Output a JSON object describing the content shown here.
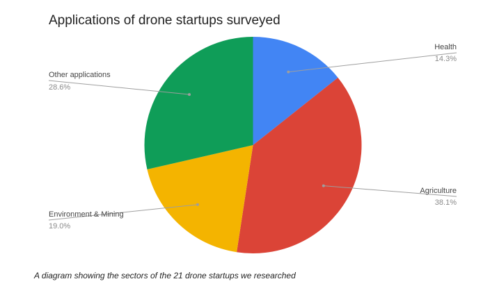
{
  "chart_data": {
    "type": "pie",
    "title": "Applications of drone startups surveyed",
    "slices": [
      {
        "label": "Health",
        "value": 14.3,
        "value_label": "14.3%",
        "color": "#4285F4"
      },
      {
        "label": "Agriculture",
        "value": 38.1,
        "value_label": "38.1%",
        "color": "#DB4437"
      },
      {
        "label": "Environment & Mining",
        "value": 19.0,
        "value_label": "19.0%",
        "color": "#F4B400"
      },
      {
        "label": "Other applications",
        "value": 28.6,
        "value_label": "28.6%",
        "color": "#0F9D58"
      }
    ],
    "start_angle": "12 o'clock, clockwise",
    "legend": "labeled leader lines"
  },
  "caption": "A diagram showing the sectors of the 21 drone startups we researched"
}
